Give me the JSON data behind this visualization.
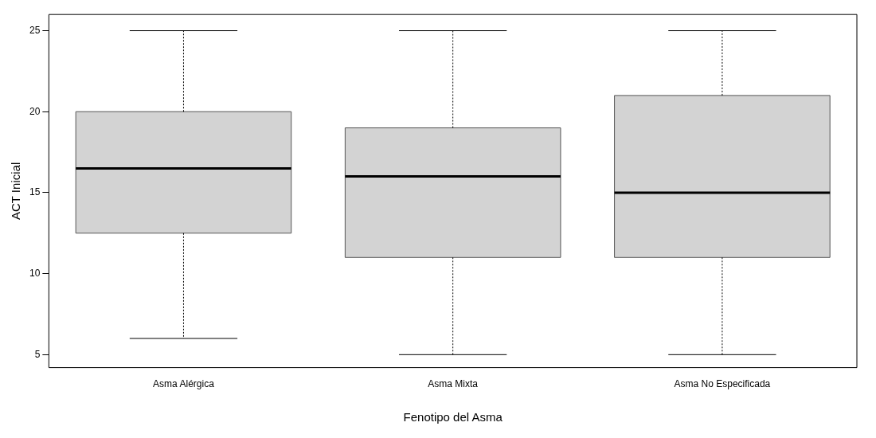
{
  "chart_data": {
    "type": "box",
    "xlabel": "Fenotipo del Asma",
    "ylabel": "ACT Inicial",
    "categories": [
      "Asma Alérgica",
      "Asma Mixta",
      "Asma No Especificada"
    ],
    "color": "#d3d3d3",
    "ylim": [
      4.2,
      26
    ],
    "yticks": [
      5,
      10,
      15,
      20,
      25
    ],
    "grid": false,
    "boxes": [
      {
        "low": 6,
        "q1": 12.5,
        "median": 16.5,
        "q3": 20,
        "high": 25
      },
      {
        "low": 5,
        "q1": 11,
        "median": 16,
        "q3": 19,
        "high": 25
      },
      {
        "low": 5,
        "q1": 11,
        "median": 15,
        "q3": 21,
        "high": 25
      }
    ]
  }
}
